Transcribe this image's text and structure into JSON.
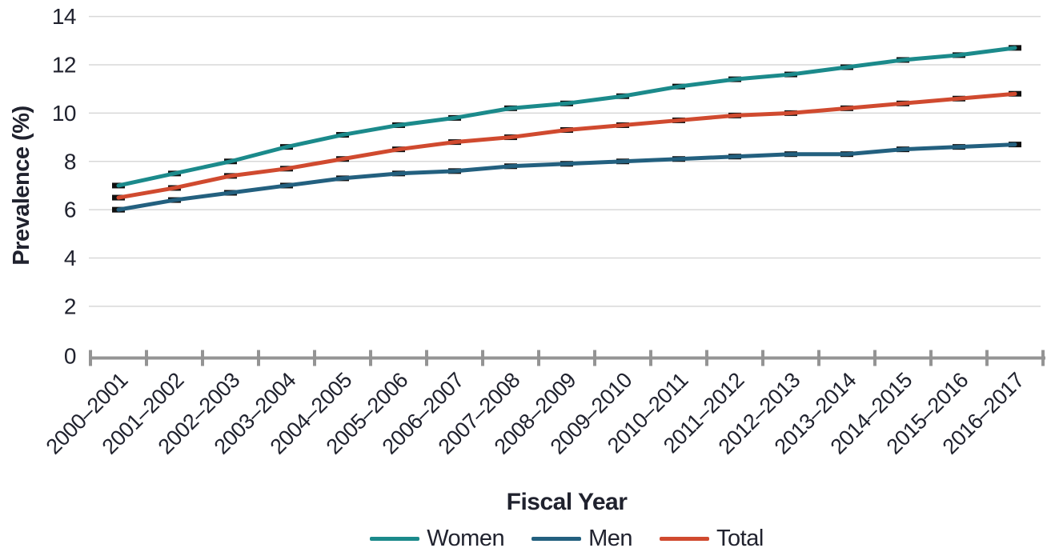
{
  "page": {
    "background": "#ffffff"
  },
  "chart_data": {
    "type": "line",
    "title": "",
    "xlabel": "Fiscal Year",
    "ylabel": "Prevalence (%)",
    "ylim": [
      0,
      14
    ],
    "yticks": [
      0,
      2,
      4,
      6,
      8,
      10,
      12,
      14
    ],
    "grid": "horizontal",
    "legend_position": "bottom-center",
    "marker": {
      "shape": "dash",
      "color": "#101010"
    },
    "categories": [
      "2000–2001",
      "2001–2002",
      "2002–2003",
      "2003–2004",
      "2004–2005",
      "2005–2006",
      "2006–2007",
      "2007–2008",
      "2008–2009",
      "2009–2010",
      "2010–2011",
      "2011–2012",
      "2012–2013",
      "2013–2014",
      "2014–2015",
      "2015–2016",
      "2016–2017"
    ],
    "series": [
      {
        "name": "Women",
        "color": "#1b8a8b",
        "values": [
          7.0,
          7.5,
          8.0,
          8.6,
          9.1,
          9.5,
          9.8,
          10.2,
          10.4,
          10.7,
          11.1,
          11.4,
          11.6,
          11.9,
          12.2,
          12.4,
          12.7
        ]
      },
      {
        "name": "Men",
        "color": "#23607f",
        "values": [
          6.0,
          6.4,
          6.7,
          7.0,
          7.3,
          7.5,
          7.6,
          7.8,
          7.9,
          8.0,
          8.1,
          8.2,
          8.3,
          8.3,
          8.5,
          8.6,
          8.7
        ]
      },
      {
        "name": "Total",
        "color": "#d04a2f",
        "values": [
          6.5,
          6.9,
          7.4,
          7.7,
          8.1,
          8.5,
          8.8,
          9.0,
          9.3,
          9.5,
          9.7,
          9.9,
          10.0,
          10.2,
          10.4,
          10.6,
          10.8
        ]
      }
    ],
    "colors": {
      "gridline": "#d8d8d8",
      "axis": "#949494",
      "text": "#20222e"
    }
  }
}
